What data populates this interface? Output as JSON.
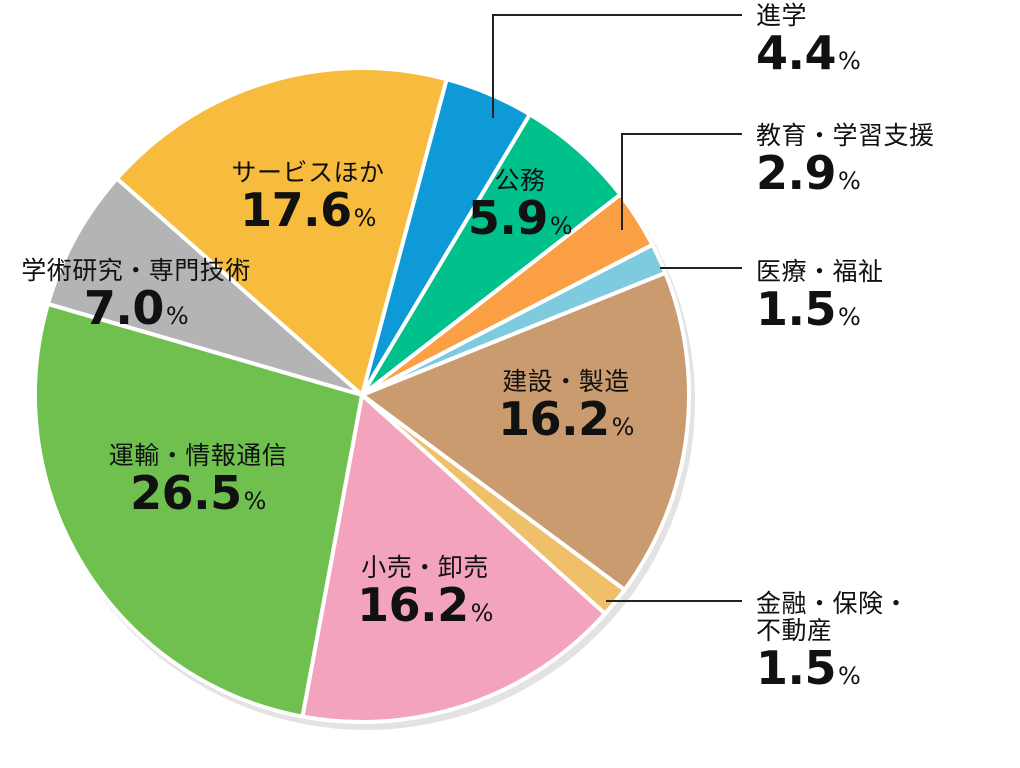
{
  "chart_data": {
    "type": "pie",
    "unit": "%",
    "categories": [
      "進学",
      "公務",
      "教育・学習支援",
      "医療・福祉",
      "建設・製造",
      "金融・保険・不動産",
      "小売・卸売",
      "運輸・情報通信",
      "学術研究・専門技術",
      "サービスほか"
    ],
    "values": [
      4.4,
      5.9,
      2.9,
      1.5,
      16.2,
      1.5,
      16.2,
      26.5,
      7.0,
      17.6
    ],
    "colors": [
      "#0d9ad6",
      "#00c08b",
      "#fb9f45",
      "#7ecbe0",
      "#c99b6e",
      "#efbf6a",
      "#f4a3bc",
      "#6fc04f",
      "#b4b4b4",
      "#f7bb3d"
    ],
    "start_angle_deg": 15,
    "direction": "clockwise",
    "labels": {
      "進学": {
        "lines": [
          "進学"
        ],
        "value": "4.4"
      },
      "公務": {
        "lines": [
          "公務"
        ],
        "value": "5.9"
      },
      "教育・学習支援": {
        "lines": [
          "教育・学習支援"
        ],
        "value": "2.9"
      },
      "医療・福祉": {
        "lines": [
          "医療・福祉"
        ],
        "value": "1.5"
      },
      "建設・製造": {
        "lines": [
          "建設・製造"
        ],
        "value": "16.2"
      },
      "金融・保険・不動産": {
        "lines": [
          "金融・保険・",
          "不動産"
        ],
        "value": "1.5"
      },
      "小売・卸売": {
        "lines": [
          "小売・卸売"
        ],
        "value": "16.2"
      },
      "運輸・情報通信": {
        "lines": [
          "運輸・情報通信"
        ],
        "value": "26.5"
      },
      "学術研究・専門技術": {
        "lines": [
          "学術研究・専門技術"
        ],
        "value": "7.0"
      },
      "サービスほか": {
        "lines": [
          "サービスほか"
        ],
        "value": "17.6"
      }
    },
    "percent_symbol": "%"
  }
}
